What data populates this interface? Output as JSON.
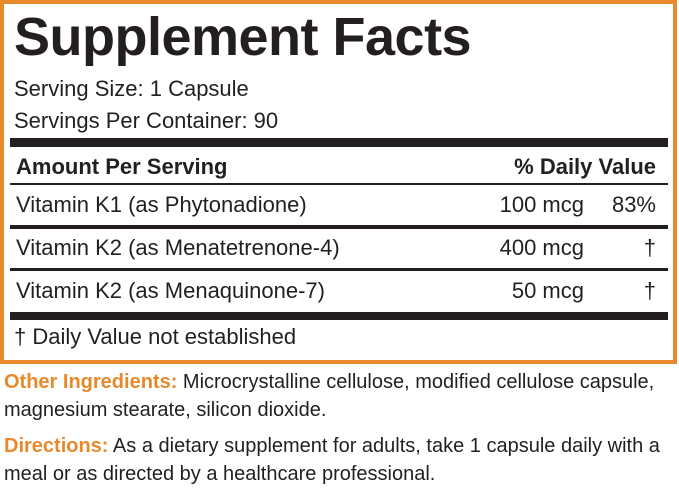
{
  "title": "Supplement Facts",
  "serving_size": "Serving Size: 1 Capsule",
  "servings_per_container": "Servings Per Container: 90",
  "table": {
    "header": [
      "Amount Per Serving",
      "% Daily Value"
    ],
    "rows": [
      [
        "Vitamin K1 (as Phytonadione)",
        "100 mcg",
        "83%"
      ],
      [
        "Vitamin K2 (as Menatetrenone-4)",
        "400 mcg",
        "†"
      ],
      [
        "Vitamin K2 (as Menaquinone-7)",
        "50 mcg",
        "†"
      ]
    ]
  },
  "footnote": "† Daily Value not established",
  "other_ingredients": {
    "label": "Other Ingredients:",
    "text": "Microcrystalline cellulose, modified cellulose capsule, magnesium stearate, silicon dioxide."
  },
  "directions": {
    "label": "Directions:",
    "text": "As a dietary supplement for adults, take 1 capsule daily with a meal or as directed by a healthcare professional."
  }
}
